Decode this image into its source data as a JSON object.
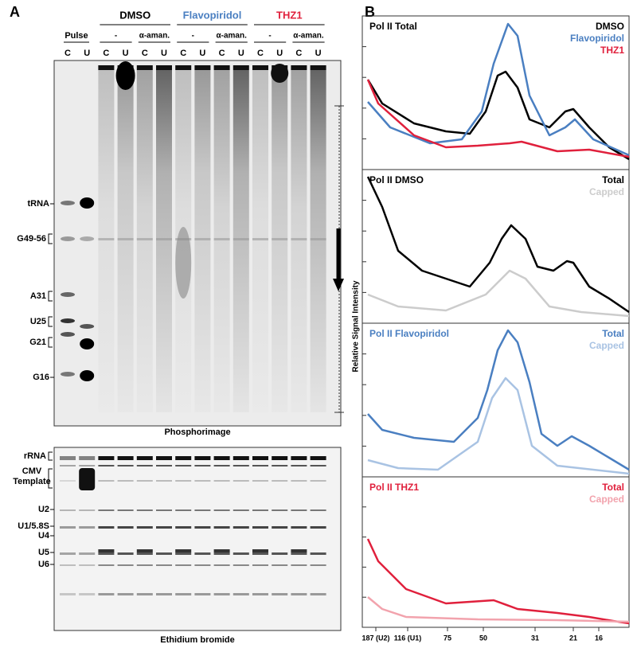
{
  "panel_a": {
    "label": "A",
    "pulse": "Pulse",
    "treatments": [
      {
        "name": "DMSO",
        "color": "#000000"
      },
      {
        "name": "Flavopiridol",
        "color": "#4a7fc1"
      },
      {
        "name": "THZ1",
        "color": "#e0203c"
      }
    ],
    "conditions": [
      "-",
      "α-aman."
    ],
    "lanes": [
      "C",
      "U"
    ],
    "phosphorimage": {
      "caption": "Phosphorimage",
      "markers": [
        "tRNA",
        "G49-56",
        "A31",
        "U25",
        "G21",
        "G16"
      ]
    },
    "ethidium": {
      "caption": "Ethidium bromide",
      "markers": [
        "rRNA",
        "CMV Template",
        "U2",
        "U1/5.8S",
        "U4",
        "U5",
        "U6"
      ]
    }
  },
  "panel_b": {
    "label": "B",
    "y_label": "Relative Signal Intensity",
    "x_labels": [
      "187 (U2)",
      "116 (U1)",
      "75",
      "50",
      "31",
      "21",
      "16"
    ],
    "plots": [
      {
        "title": "Pol II Total",
        "title_color": "#000000",
        "legend": [
          {
            "name": "DMSO",
            "color": "#000000"
          },
          {
            "name": "Flavopiridol",
            "color": "#4a7fc1"
          },
          {
            "name": "THZ1",
            "color": "#e0203c"
          }
        ]
      },
      {
        "title": "Pol II DMSO",
        "title_color": "#000000",
        "legend": [
          {
            "name": "Total",
            "color": "#000000"
          },
          {
            "name": "Capped",
            "color": "#cccccc"
          }
        ]
      },
      {
        "title": "Pol II Flavopiridol",
        "title_color": "#4a7fc1",
        "legend": [
          {
            "name": "Total",
            "color": "#4a7fc1"
          },
          {
            "name": "Capped",
            "color": "#a9c3e3"
          }
        ]
      },
      {
        "title": "Pol II THZ1",
        "title_color": "#e0203c",
        "legend": [
          {
            "name": "Total",
            "color": "#e0203c"
          },
          {
            "name": "Capped",
            "color": "#f2a3ad"
          }
        ]
      }
    ]
  }
}
